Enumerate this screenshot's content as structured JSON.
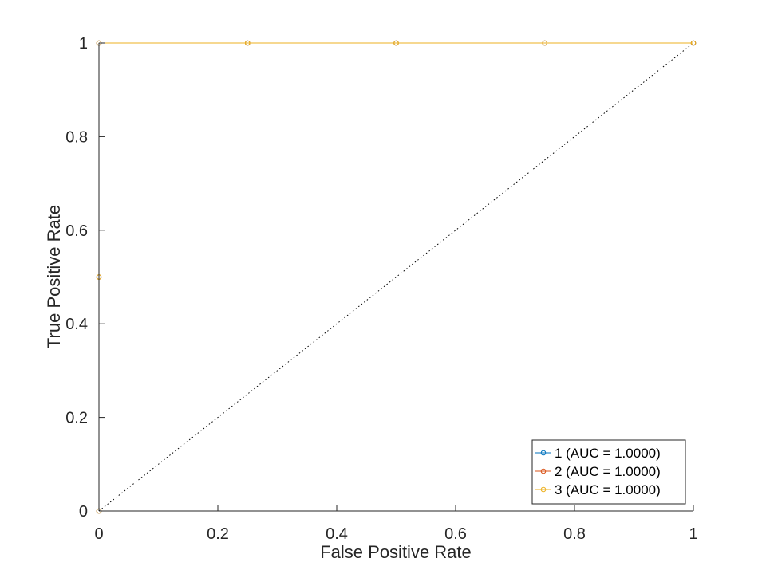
{
  "chart_data": {
    "type": "line",
    "xlabel": "False Positive Rate",
    "ylabel": "True Positive Rate",
    "xlim": [
      0,
      1
    ],
    "ylim": [
      0,
      1
    ],
    "xticks": [
      "0",
      "0.2",
      "0.4",
      "0.6",
      "0.8",
      "1"
    ],
    "yticks": [
      "0",
      "0.2",
      "0.4",
      "0.6",
      "0.8",
      "1"
    ],
    "grid": false,
    "legend_position": "bottom-right",
    "diagonal_reference": true,
    "series": [
      {
        "name": "1 (AUC = 1.0000)",
        "color": "#0072bd",
        "x": [
          0,
          0,
          0,
          0.25,
          0.5,
          0.75,
          1
        ],
        "y": [
          0,
          0.5,
          1,
          1,
          1,
          1,
          1
        ]
      },
      {
        "name": "2 (AUC = 1.0000)",
        "color": "#d95319",
        "x": [
          0,
          0,
          0,
          0.25,
          0.5,
          0.75,
          1
        ],
        "y": [
          0,
          0.5,
          1,
          1,
          1,
          1,
          1
        ]
      },
      {
        "name": "3 (AUC = 1.0000)",
        "color": "#edb120",
        "x": [
          0,
          0,
          0,
          0.25,
          0.5,
          0.75,
          1
        ],
        "y": [
          0,
          0.5,
          1,
          1,
          1,
          1,
          1
        ]
      }
    ]
  }
}
